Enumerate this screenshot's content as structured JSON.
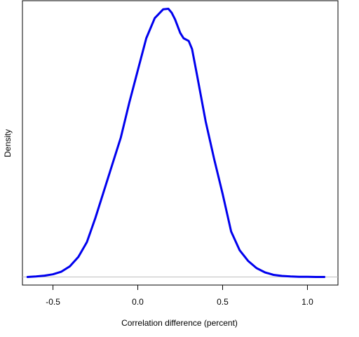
{
  "chart_data": {
    "type": "line",
    "title": "",
    "xlabel": "Correlation difference (percent)",
    "ylabel": "Density",
    "xlim": [
      -0.68,
      1.18
    ],
    "ylim": [
      -0.03,
      1.03
    ],
    "x_ticks": [
      {
        "value": -0.5,
        "label": "-0.5"
      },
      {
        "value": 0.0,
        "label": "0.0"
      },
      {
        "value": 0.5,
        "label": "0.5"
      },
      {
        "value": 1.0,
        "label": "1.0"
      }
    ],
    "y_ticks": [],
    "baseline": 0,
    "grid": false,
    "colors": {
      "line": "#0000ee",
      "baseline": "#bebebe",
      "frame": "#000000"
    },
    "series": [
      {
        "x": [
          -0.65,
          -0.6,
          -0.55,
          -0.5,
          -0.45,
          -0.4,
          -0.35,
          -0.3,
          -0.25,
          -0.2,
          -0.15,
          -0.1,
          -0.05,
          0.0,
          0.05,
          0.1,
          0.15,
          0.18,
          0.2,
          0.22,
          0.25,
          0.27,
          0.3,
          0.32,
          0.35,
          0.4,
          0.45,
          0.5,
          0.55,
          0.6,
          0.65,
          0.7,
          0.75,
          0.8,
          0.85,
          0.9,
          0.95,
          1.0,
          1.05,
          1.1
        ],
        "y": [
          0.0,
          0.002,
          0.005,
          0.01,
          0.02,
          0.04,
          0.075,
          0.13,
          0.22,
          0.32,
          0.42,
          0.52,
          0.65,
          0.77,
          0.89,
          0.965,
          0.998,
          1.0,
          0.985,
          0.96,
          0.91,
          0.89,
          0.88,
          0.85,
          0.75,
          0.58,
          0.44,
          0.31,
          0.17,
          0.1,
          0.06,
          0.033,
          0.017,
          0.008,
          0.004,
          0.002,
          0.001,
          0.0005,
          0.0002,
          0.0
        ]
      }
    ]
  }
}
